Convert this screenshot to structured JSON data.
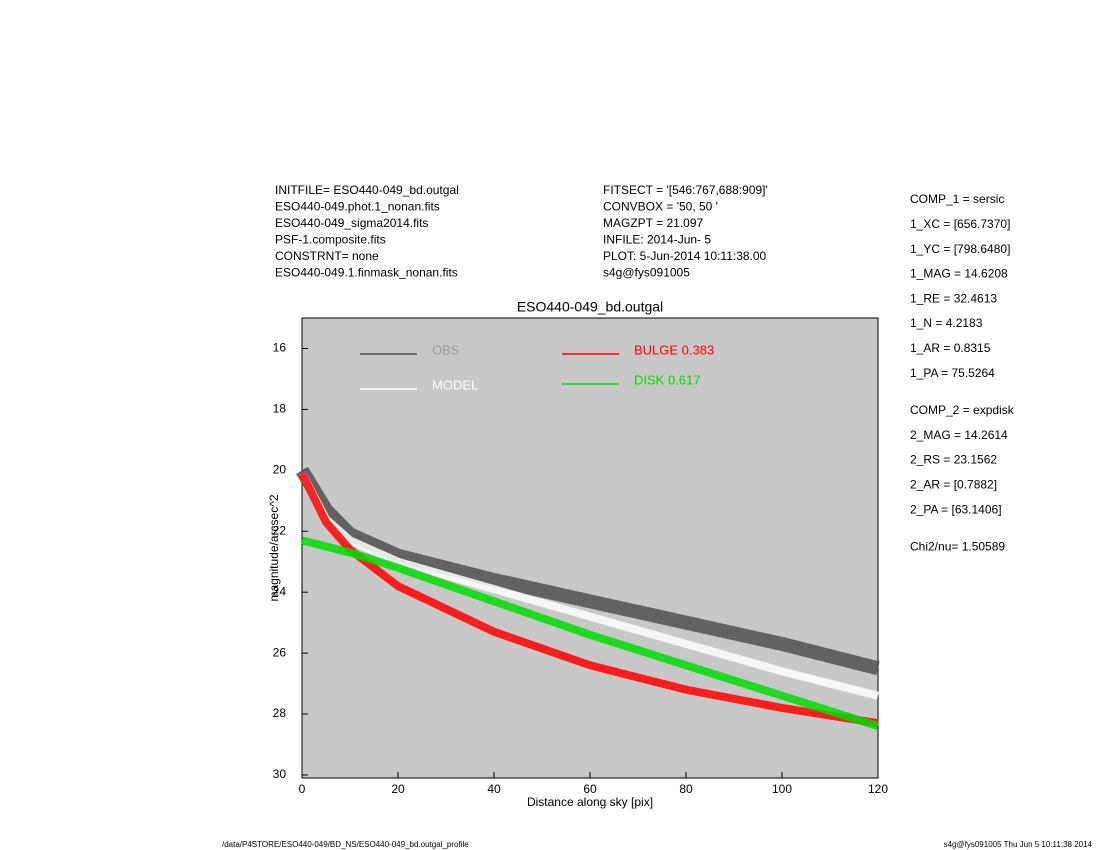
{
  "header_left": [
    "INITFILE= ESO440-049_bd.outgal",
    "ESO440-049.phot.1_nonan.fits",
    "ESO440-049_sigma2014.fits",
    "PSF-1.composite.fits",
    "CONSTRNT= none",
    "ESO440-049.1.finmask_nonan.fits"
  ],
  "header_middle": [
    "FITSECT = '[546:767,688:909]'",
    "CONVBOX = '50, 50  '",
    "MAGZPT =              21.097",
    "INFILE: 2014-Jun- 5",
    "PLOT:  5-Jun-2014 10:11:38.00",
    "s4g@fys091005"
  ],
  "parameters": [
    [
      "COMP_1  = sersic",
      "1_XC    = [656.7370]",
      "1_YC    = [798.6480]",
      "1_MAG   = 14.6208",
      "1_RE    = 32.4613",
      "1_N     = 4.2183",
      "1_AR    = 0.8315",
      "1_PA    = 75.5264"
    ],
    [
      "COMP_2  = expdisk",
      "2_MAG   = 14.2614",
      "2_RS    = 23.1562",
      "2_AR    = [0.7882]",
      "2_PA    = [63.1406]"
    ],
    [
      "Chi2/nu=      1.50589"
    ]
  ],
  "footer_left": "/data/P4STORE/ESO440-049/BD_NS/ESO440-049_bd.outgal_profile",
  "footer_right": "s4g@fys091005  Thu Jun  5 10:11:38 2014",
  "chart_data": {
    "type": "line",
    "title": "ESO440-049_bd.outgal",
    "x_label": "Distance along sky [pix]",
    "y_label": "magnitude/arcsec^2",
    "xlim": [
      0,
      120
    ],
    "xticks": [
      0,
      20,
      40,
      60,
      80,
      100,
      120
    ],
    "ylim": [
      30.1,
      15
    ],
    "yticks": [
      16,
      18,
      20,
      22,
      24,
      26,
      28,
      30
    ],
    "x": [
      0,
      5,
      10,
      20,
      40,
      60,
      80,
      100,
      120
    ],
    "series": [
      {
        "name": "OBS",
        "color": "#505050",
        "values": [
          20,
          21.3,
          22.1,
          22.8,
          23.6,
          24.3,
          25.0,
          25.7,
          26.5
        ]
      },
      {
        "name": "MODEL",
        "color": "#ffffff",
        "values": [
          20.1,
          21.6,
          22.3,
          23.0,
          23.9,
          24.8,
          25.7,
          26.6,
          27.4
        ]
      },
      {
        "name": "BULGE  0.383",
        "color": "#ff0000",
        "values": [
          20.1,
          21.7,
          22.6,
          23.8,
          25.3,
          26.4,
          27.2,
          27.8,
          28.3
        ]
      },
      {
        "name": "DISK  0.617",
        "color": "#00dd00",
        "values": [
          22.3,
          22.5,
          22.7,
          23.2,
          24.3,
          25.4,
          26.4,
          27.4,
          28.4
        ]
      }
    ],
    "legend_text_colors": [
      "#999999",
      "#ffffff",
      "#ff0000",
      "#00dd00"
    ]
  }
}
